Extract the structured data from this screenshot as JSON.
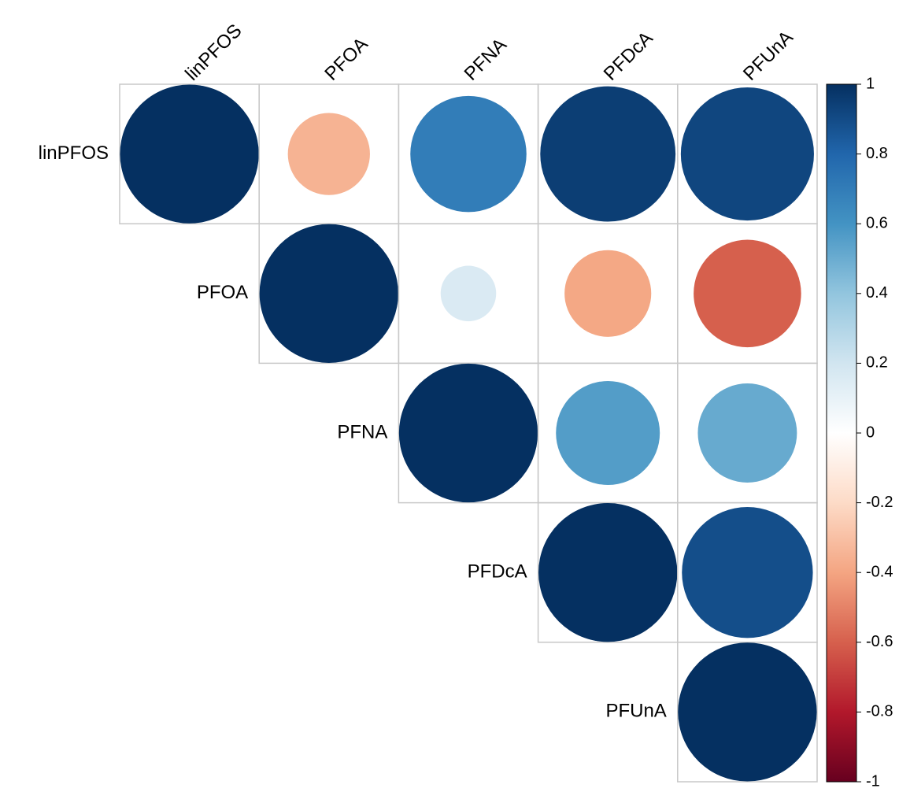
{
  "chart_data": {
    "type": "corrplot",
    "variables": [
      "linPFOS",
      "PFOA",
      "PFNA",
      "PFDcA",
      "PFUnA"
    ],
    "values": [
      [
        1,
        -0.35,
        0.7,
        0.95,
        0.92
      ],
      [
        null,
        1,
        0.16,
        -0.39,
        -0.6
      ],
      [
        null,
        null,
        1,
        0.56,
        0.51
      ],
      [
        null,
        null,
        null,
        1,
        0.89
      ],
      [
        null,
        null,
        null,
        null,
        1
      ]
    ],
    "colorscale": [
      "#67001F",
      "#B2182B",
      "#D6604D",
      "#F4A582",
      "#FDDBC7",
      "#FFFFFF",
      "#D1E5F0",
      "#92C5DE",
      "#4393C3",
      "#2166AC",
      "#053061"
    ],
    "clim": [
      -1,
      1
    ],
    "cticks": [
      -1,
      -0.8,
      -0.6,
      -0.4,
      -0.2,
      0,
      0.2,
      0.4,
      0.6,
      0.8,
      1
    ]
  }
}
